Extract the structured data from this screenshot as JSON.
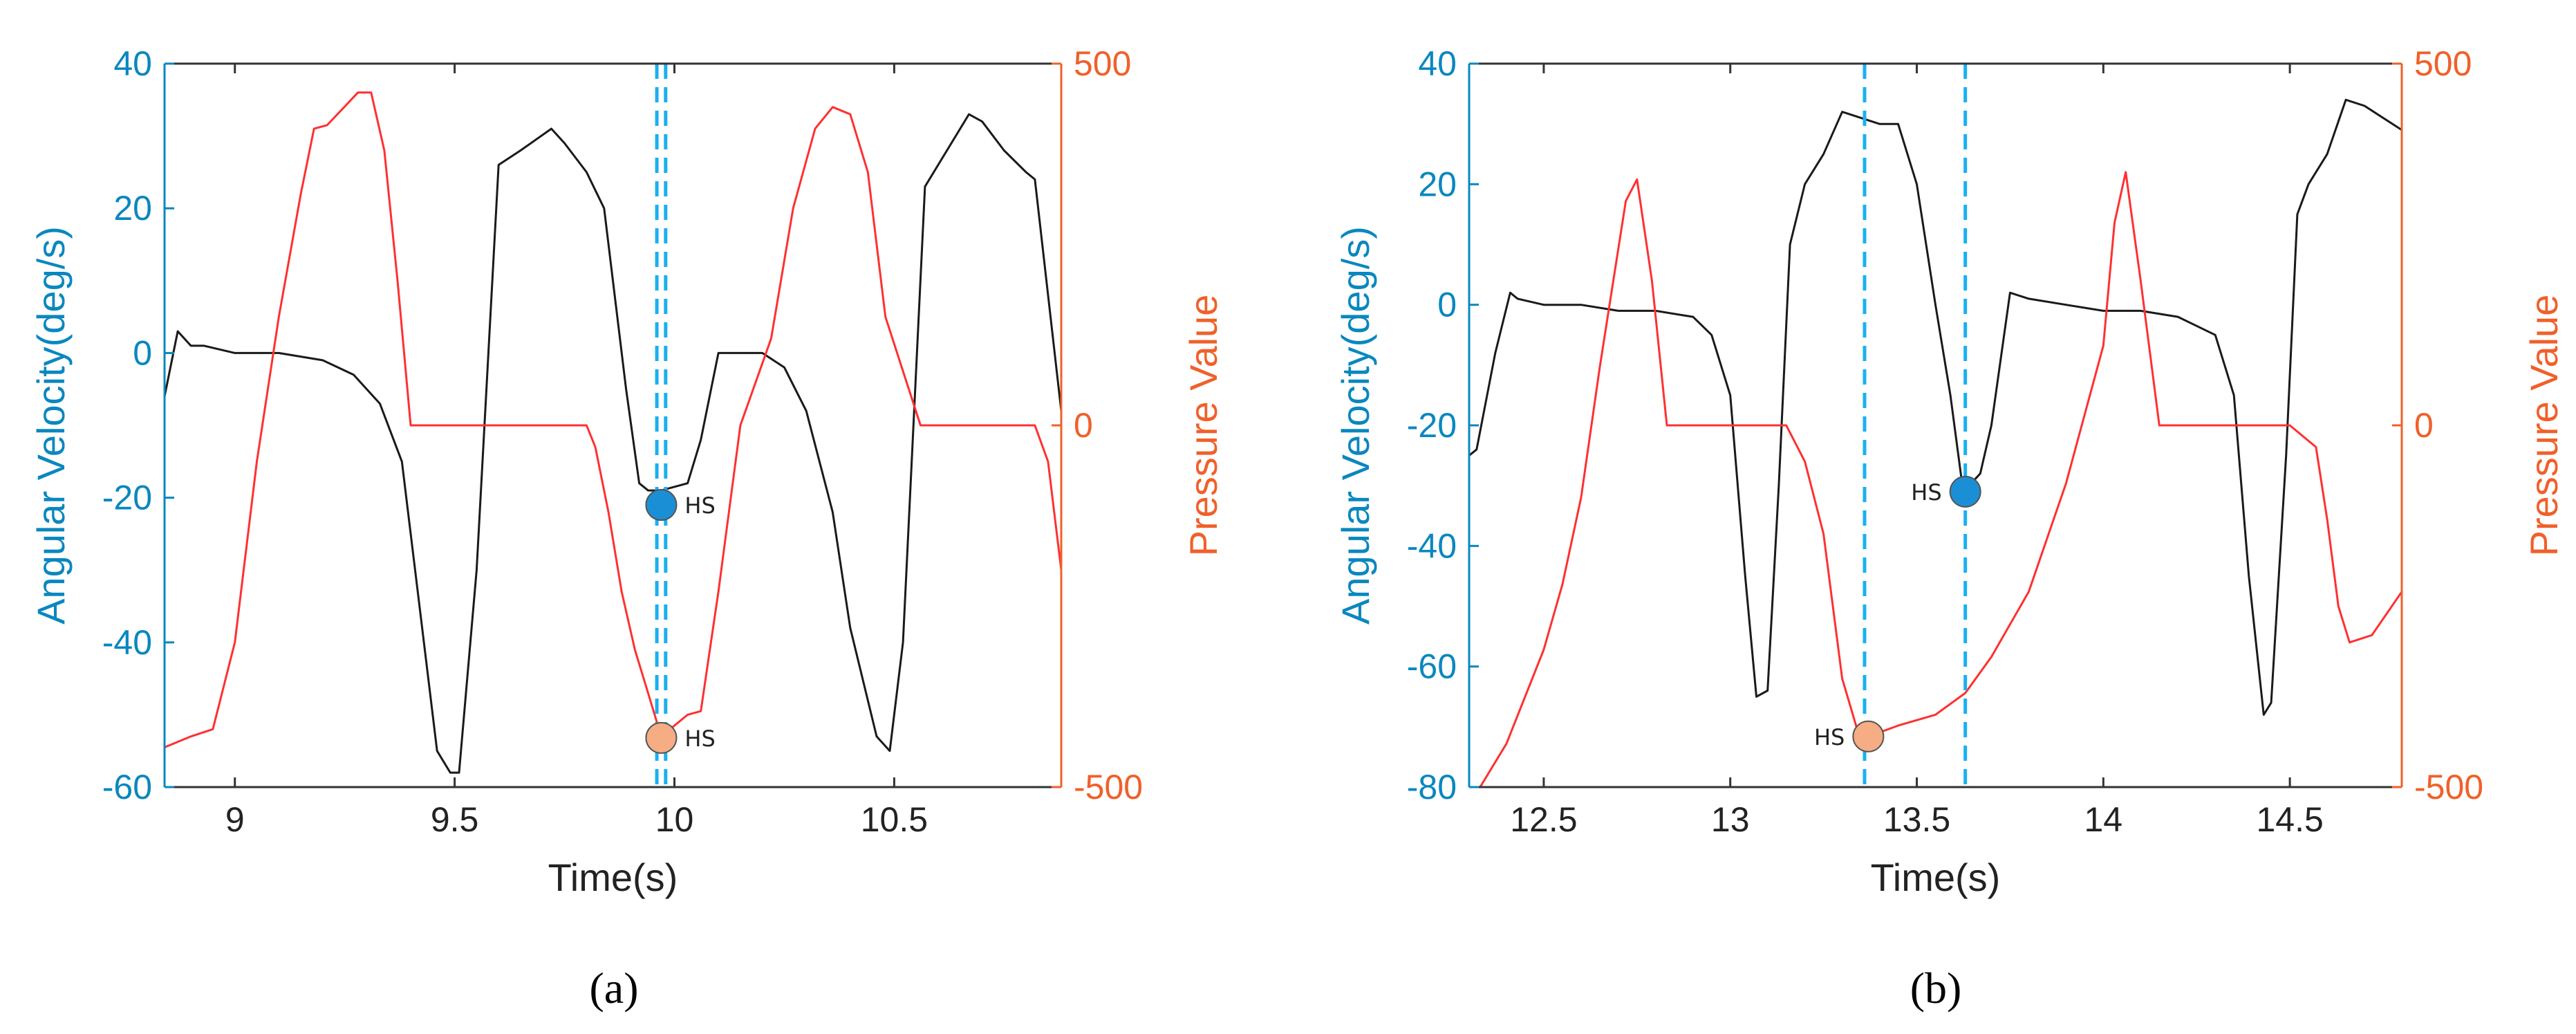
{
  "colors": {
    "left_axis": "#0a87bf",
    "right_axis": "#f0602a",
    "angular_velocity": "#1a1a1a",
    "pressure": "#ff3030",
    "hs_vertical_line": "#1ab0f0",
    "hs_angular_marker": "#1b8fd6",
    "hs_pressure_marker": "#f6ad84"
  },
  "chart_data": [
    {
      "panel": "a",
      "type": "line",
      "caption": "(a)",
      "xlabel": "Time(s)",
      "ylabel_left": "Angular Velocity(deg/s)",
      "ylabel_right": "Pressure Value",
      "xlim": [
        8.84,
        10.88
      ],
      "xticks": [
        "9",
        "9.5",
        "10",
        "10.5"
      ],
      "xtick_values": [
        9,
        9.5,
        10,
        10.5
      ],
      "ylim_left": [
        -60,
        40
      ],
      "yticks_left": [
        "-60",
        "-40",
        "-20",
        "0",
        "20",
        "40"
      ],
      "ytick_left_values": [
        -60,
        -40,
        -20,
        0,
        20,
        40
      ],
      "ylim_right": [
        -500,
        500
      ],
      "yticks_right": [
        "-500",
        "0",
        "500"
      ],
      "ytick_right_values": [
        -500,
        0,
        500
      ],
      "series": [
        {
          "axis": "left",
          "x": [
            8.84,
            8.87,
            8.9,
            8.93,
            9.0,
            9.1,
            9.2,
            9.27,
            9.33,
            9.38,
            9.42,
            9.46,
            9.49,
            9.51,
            9.55,
            9.6,
            9.65,
            9.72,
            9.75,
            9.8,
            9.84,
            9.89,
            9.92,
            9.94,
            9.97,
            10.03,
            10.06,
            10.1,
            10.2,
            10.25,
            10.3,
            10.36,
            10.4,
            10.46,
            10.49,
            10.52,
            10.57,
            10.6,
            10.67,
            10.7,
            10.75,
            10.8,
            10.82,
            10.88
          ],
          "y": [
            -6,
            3,
            1,
            1,
            0,
            0,
            -1,
            -3,
            -7,
            -15,
            -35,
            -55,
            -58,
            -58,
            -30,
            26,
            28,
            31,
            29,
            25,
            20,
            -5,
            -18,
            -19,
            -19,
            -18,
            -12,
            0,
            0,
            -2,
            -8,
            -22,
            -38,
            -53,
            -55,
            -40,
            23,
            26,
            33,
            32,
            28,
            25,
            24,
            -8
          ]
        },
        {
          "axis": "right",
          "x": [
            8.84,
            8.9,
            8.95,
            9.0,
            9.05,
            9.1,
            9.15,
            9.18,
            9.21,
            9.28,
            9.31,
            9.34,
            9.37,
            9.4,
            9.45,
            9.6,
            9.8,
            9.82,
            9.85,
            9.88,
            9.91,
            9.94,
            9.97,
            10.03,
            10.06,
            10.1,
            10.15,
            10.22,
            10.27,
            10.32,
            10.36,
            10.4,
            10.44,
            10.48,
            10.56,
            10.6,
            10.7,
            10.75,
            10.82,
            10.85,
            10.88
          ],
          "y": [
            -445,
            -430,
            -420,
            -300,
            -50,
            150,
            320,
            410,
            415,
            460,
            460,
            380,
            200,
            0,
            0,
            0,
            0,
            -30,
            -120,
            -230,
            -310,
            -370,
            -430,
            -400,
            -395,
            -230,
            0,
            120,
            300,
            410,
            440,
            430,
            350,
            150,
            0,
            0,
            0,
            0,
            0,
            -50,
            -200
          ]
        }
      ],
      "hs_markers": [
        {
          "label": "HS",
          "x": 9.97,
          "axis": "left",
          "y": -21
        },
        {
          "label": "HS",
          "x": 9.97,
          "axis": "right",
          "y": -432
        }
      ],
      "vertical_lines_x": [
        9.96,
        9.98
      ]
    },
    {
      "panel": "b",
      "type": "line",
      "caption": "(b)",
      "xlabel": "Time(s)",
      "ylabel_left": "Angular Velocity(deg/s)",
      "ylabel_right": "Pressure Value",
      "xlim": [
        12.3,
        14.8
      ],
      "xticks": [
        "12.5",
        "13",
        "13.5",
        "14",
        "14.5"
      ],
      "xtick_values": [
        12.5,
        13,
        13.5,
        14,
        14.5
      ],
      "ylim_left": [
        -80,
        40
      ],
      "yticks_left": [
        "-80",
        "-60",
        "-40",
        "-20",
        "0",
        "20",
        "40"
      ],
      "ytick_left_values": [
        -80,
        -60,
        -40,
        -20,
        0,
        20,
        40
      ],
      "ylim_right": [
        -500,
        500
      ],
      "yticks_right": [
        "-500",
        "0",
        "500"
      ],
      "ytick_right_values": [
        -500,
        0,
        500
      ],
      "series": [
        {
          "axis": "left",
          "x": [
            12.3,
            12.32,
            12.37,
            12.41,
            12.43,
            12.5,
            12.6,
            12.7,
            12.8,
            12.9,
            12.95,
            13.0,
            13.04,
            13.07,
            13.1,
            13.13,
            13.16,
            13.2,
            13.25,
            13.3,
            13.35,
            13.4,
            13.45,
            13.5,
            13.55,
            13.59,
            13.62,
            13.64,
            13.67,
            13.7,
            13.75,
            13.8,
            13.9,
            14.0,
            14.1,
            14.2,
            14.3,
            14.35,
            14.39,
            14.43,
            14.45,
            14.49,
            14.52,
            14.55,
            14.6,
            14.65,
            14.7,
            14.8
          ],
          "y": [
            -25,
            -24,
            -8,
            2,
            1,
            0,
            0,
            -1,
            -1,
            -2,
            -5,
            -15,
            -45,
            -65,
            -64,
            -30,
            10,
            20,
            25,
            32,
            31,
            30,
            30,
            20,
            0,
            -15,
            -29,
            -30,
            -28,
            -20,
            2,
            1,
            0,
            -1,
            -1,
            -2,
            -5,
            -15,
            -45,
            -68,
            -66,
            -25,
            15,
            20,
            25,
            34,
            33,
            29
          ]
        },
        {
          "axis": "right",
          "x": [
            12.3,
            12.4,
            12.5,
            12.55,
            12.6,
            12.65,
            12.72,
            12.75,
            12.79,
            12.83,
            12.87,
            13.0,
            13.15,
            13.2,
            13.25,
            13.3,
            13.34,
            13.37,
            13.45,
            13.55,
            13.63,
            13.7,
            13.8,
            13.9,
            14.0,
            14.03,
            14.06,
            14.1,
            14.15,
            14.2,
            14.3,
            14.5,
            14.57,
            14.6,
            14.63,
            14.66,
            14.72,
            14.8
          ],
          "y": [
            -525,
            -440,
            -310,
            -220,
            -100,
            80,
            310,
            340,
            200,
            0,
            0,
            0,
            0,
            -50,
            -150,
            -350,
            -420,
            -430,
            -415,
            -400,
            -370,
            -320,
            -230,
            -80,
            110,
            280,
            350,
            200,
            0,
            0,
            0,
            0,
            -30,
            -130,
            -250,
            -300,
            -290,
            -230
          ]
        }
      ],
      "hs_markers": [
        {
          "label": "HS",
          "x": 13.63,
          "axis": "left",
          "y": -31
        },
        {
          "label": "HS",
          "x": 13.37,
          "axis": "right",
          "y": -430
        }
      ],
      "vertical_lines_x": [
        13.36,
        13.63
      ]
    }
  ]
}
